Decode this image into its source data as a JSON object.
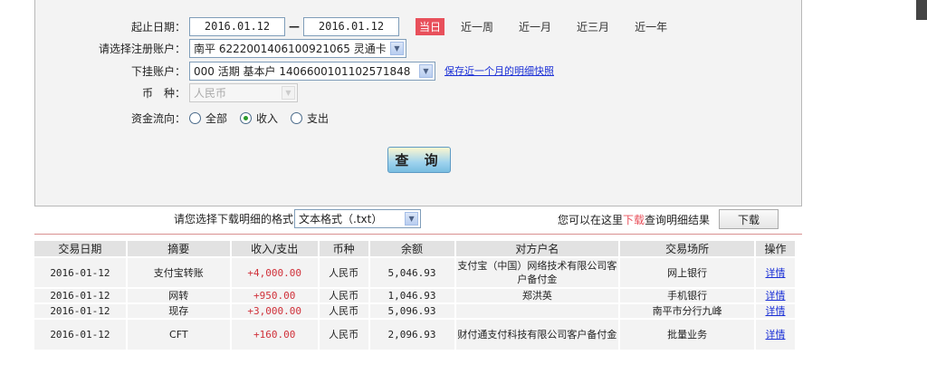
{
  "form": {
    "date_label": "起止日期：",
    "start_date": "2016.01.12",
    "date_sep": "—",
    "end_date": "2016.01.12",
    "quick_ranges": [
      "当日",
      "近一周",
      "近一月",
      "近三月",
      "近一年"
    ],
    "account_label": "请选择注册账户：",
    "account_value": "南平 6222001406100921065 灵通卡",
    "sub_account_label": "下挂账户：",
    "sub_account_value": "000 活期 基本户 1406600101102571848",
    "snapshot_link": "保存近一个月的明细快照",
    "currency_label": "币　种：",
    "currency_value": "人民币",
    "flow_label": "资金流向：",
    "flow_options": [
      "全部",
      "收入",
      "支出"
    ],
    "flow_selected": "收入",
    "query_button": "查 询"
  },
  "download": {
    "format_label": "请您选择下载明细的格式",
    "format_value": "文本格式（.txt）",
    "hint_prefix": "您可以在这里",
    "hint_link": "下载",
    "hint_suffix": "查询明细结果",
    "button": "下载"
  },
  "table": {
    "headers": [
      "交易日期",
      "摘要",
      "收入/支出",
      "币种",
      "余额",
      "对方户名",
      "交易场所",
      "操作"
    ],
    "rows": [
      {
        "date": "2016-01-12",
        "summary": "支付宝转账",
        "amount": "+4,000.00",
        "currency": "人民币",
        "balance": "5,046.93",
        "counterparty": "支付宝（中国）网络技术有限公司客户备付金",
        "place": "网上银行",
        "action": "详情"
      },
      {
        "date": "2016-01-12",
        "summary": "网转",
        "amount": "+950.00",
        "currency": "人民币",
        "balance": "1,046.93",
        "counterparty": "郑洪英",
        "place": "手机银行",
        "action": "详情"
      },
      {
        "date": "2016-01-12",
        "summary": "现存",
        "amount": "+3,000.00",
        "currency": "人民币",
        "balance": "5,096.93",
        "counterparty": "",
        "place": "南平市分行九峰",
        "action": "详情"
      },
      {
        "date": "2016-01-12",
        "summary": "CFT",
        "amount": "+160.00",
        "currency": "人民币",
        "balance": "2,096.93",
        "counterparty": "财付通支付科技有限公司客户备付金",
        "place": "批量业务",
        "action": "详情"
      }
    ]
  },
  "colors": {
    "accent_red": "#e8505b",
    "amount_red": "#d0313a",
    "link_blue": "#1a2fd6"
  }
}
